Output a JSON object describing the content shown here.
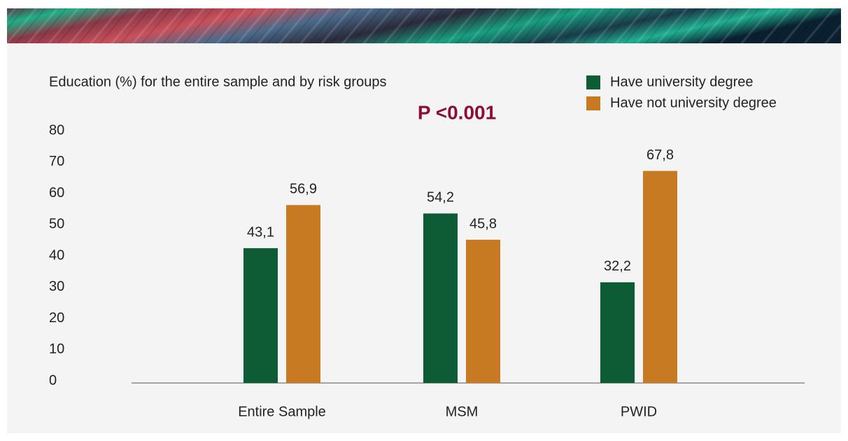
{
  "chart_data": {
    "type": "bar",
    "title": "Education (%) for the entire sample and by risk groups",
    "annotation": "P <0.001",
    "categories": [
      "Entire Sample",
      "MSM",
      "PWID"
    ],
    "series": [
      {
        "name": "Have university degree",
        "color": "#0d5c35",
        "values": [
          43.1,
          54.2,
          32.2
        ],
        "value_labels": [
          "43,1",
          "54,2",
          "32,2"
        ]
      },
      {
        "name": "Have not university degree",
        "color": "#c77a22",
        "values": [
          56.9,
          45.8,
          67.8
        ],
        "value_labels": [
          "56,9",
          "45,8",
          "67,8"
        ]
      }
    ],
    "ylim": [
      0,
      80
    ],
    "yticks": [
      0,
      10,
      20,
      30,
      40,
      50,
      60,
      70,
      80
    ],
    "legend": "top-right"
  }
}
